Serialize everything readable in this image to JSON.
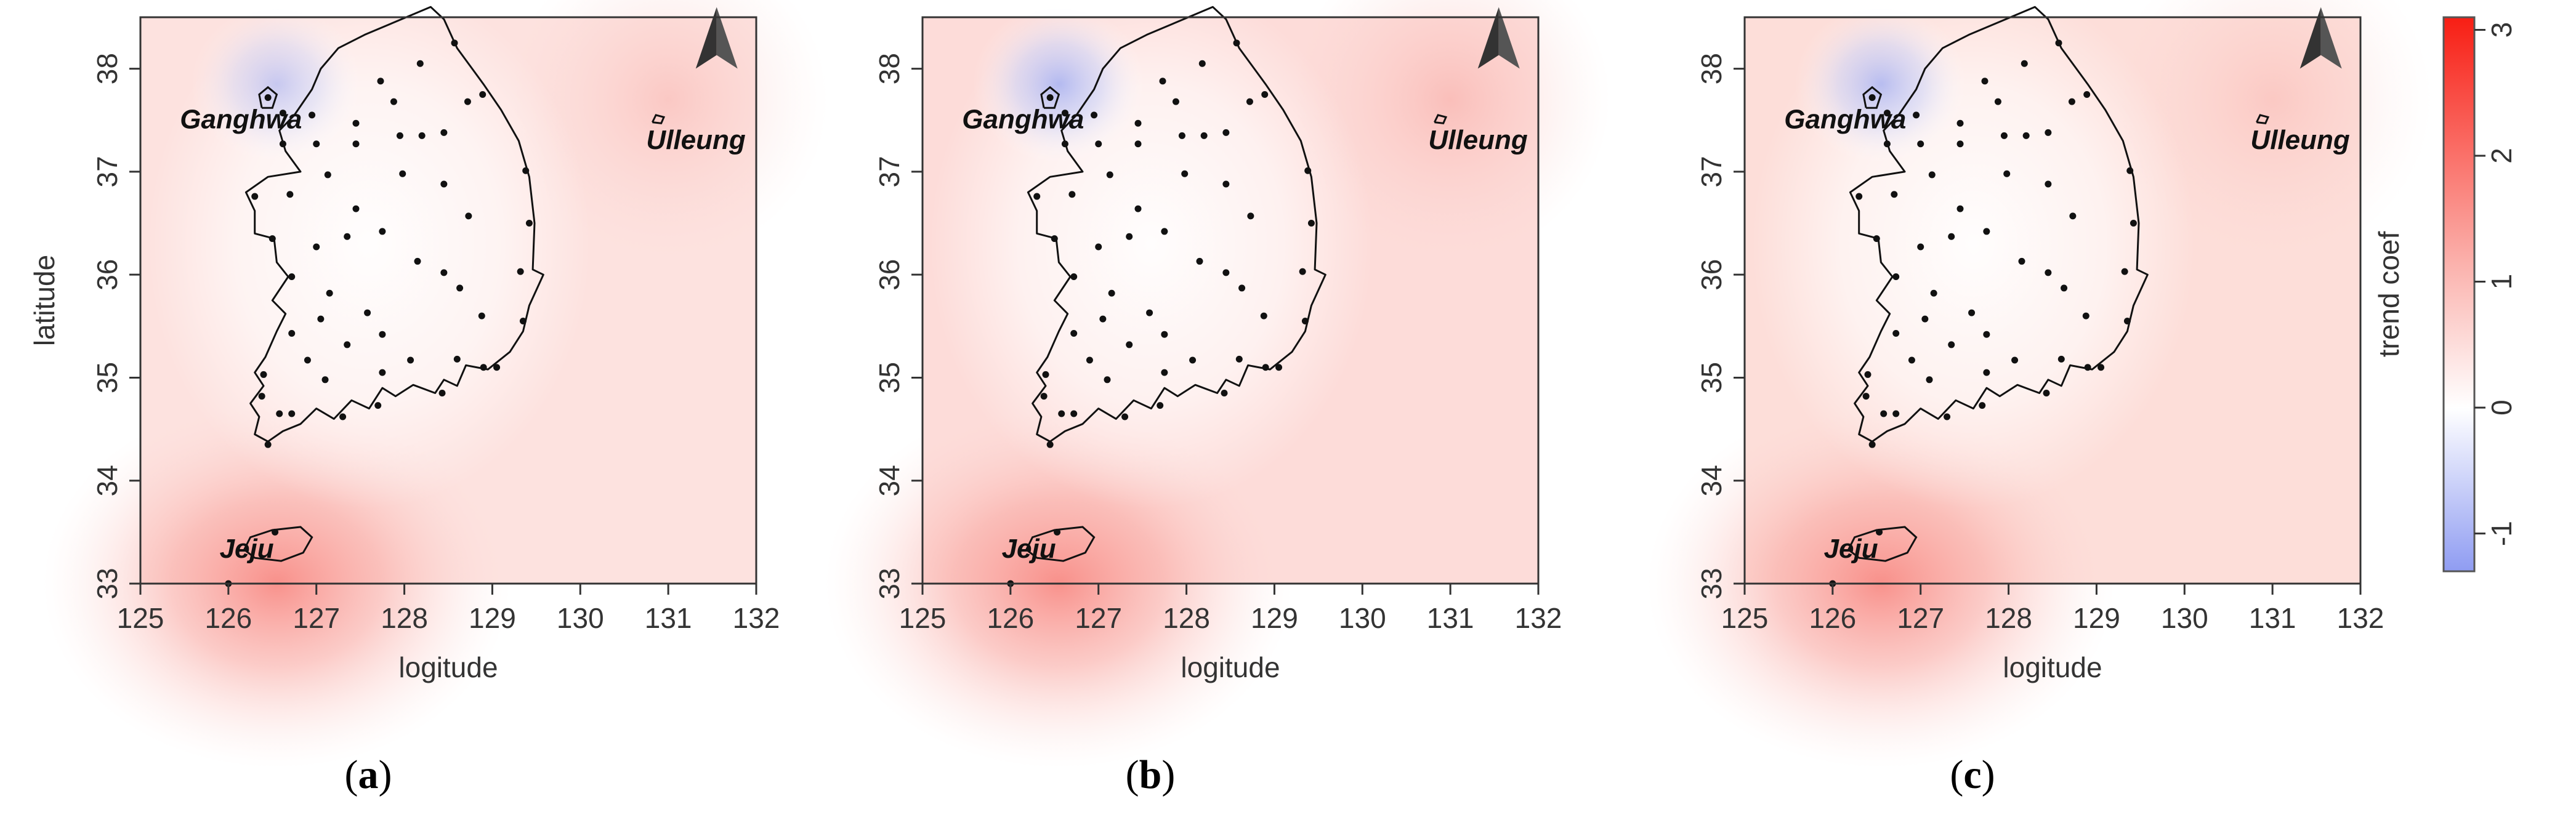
{
  "panels": [
    {
      "label": "a",
      "ylabel": "latitude",
      "xlabel": "logitude",
      "sea_tint": "#fde2df",
      "ulleung_tint": 0.4,
      "ganghwa_blue": 0.55
    },
    {
      "label": "b",
      "ylabel": "",
      "xlabel": "logitude",
      "sea_tint": "#fddcd9",
      "ulleung_tint": 0.5,
      "ganghwa_blue": 0.75
    },
    {
      "label": "c",
      "ylabel": "",
      "xlabel": "logitude",
      "sea_tint": "#fdded9",
      "ulleung_tint": 0.35,
      "ganghwa_blue": 0.7
    }
  ],
  "map": {
    "xticks": [
      "125",
      "126",
      "127",
      "128",
      "129",
      "130",
      "131",
      "132"
    ],
    "yticks": [
      "33",
      "34",
      "35",
      "36",
      "37",
      "38"
    ],
    "x_range": [
      125,
      132
    ],
    "y_range": [
      33,
      38.5
    ],
    "places": [
      {
        "name": "Ganghwa",
        "lon": 126.4,
        "lat": 37.7
      },
      {
        "name": "Ulleung",
        "lon": 130.9,
        "lat": 37.5
      },
      {
        "name": "Jeju",
        "lon": 126.5,
        "lat": 33.4
      }
    ],
    "north_arrow": "north-arrow-icon",
    "stations": [
      [
        126.45,
        37.72
      ],
      [
        126.62,
        37.57
      ],
      [
        126.62,
        37.27
      ],
      [
        126.95,
        37.55
      ],
      [
        127.0,
        37.27
      ],
      [
        127.45,
        37.47
      ],
      [
        127.45,
        37.27
      ],
      [
        127.73,
        37.88
      ],
      [
        127.88,
        37.68
      ],
      [
        128.18,
        38.05
      ],
      [
        128.57,
        38.25
      ],
      [
        128.89,
        37.75
      ],
      [
        128.72,
        37.68
      ],
      [
        128.45,
        37.38
      ],
      [
        128.2,
        37.35
      ],
      [
        127.95,
        37.35
      ],
      [
        129.38,
        37.01
      ],
      [
        127.13,
        36.97
      ],
      [
        126.7,
        36.78
      ],
      [
        126.3,
        36.76
      ],
      [
        127.45,
        36.64
      ],
      [
        127.98,
        36.98
      ],
      [
        128.45,
        36.88
      ],
      [
        128.73,
        36.57
      ],
      [
        129.42,
        36.5
      ],
      [
        126.5,
        36.35
      ],
      [
        127.0,
        36.27
      ],
      [
        127.35,
        36.37
      ],
      [
        127.75,
        36.42
      ],
      [
        128.15,
        36.13
      ],
      [
        128.45,
        36.02
      ],
      [
        129.32,
        36.03
      ],
      [
        128.63,
        35.87
      ],
      [
        128.88,
        35.6
      ],
      [
        129.35,
        35.55
      ],
      [
        128.9,
        35.1
      ],
      [
        129.05,
        35.1
      ],
      [
        128.6,
        35.18
      ],
      [
        128.07,
        35.17
      ],
      [
        127.75,
        35.42
      ],
      [
        127.58,
        35.63
      ],
      [
        127.15,
        35.82
      ],
      [
        126.72,
        35.98
      ],
      [
        126.72,
        35.43
      ],
      [
        127.05,
        35.57
      ],
      [
        126.9,
        35.17
      ],
      [
        127.35,
        35.32
      ],
      [
        126.4,
        35.03
      ],
      [
        127.1,
        34.98
      ],
      [
        127.75,
        35.05
      ],
      [
        126.38,
        34.82
      ],
      [
        126.72,
        34.65
      ],
      [
        127.3,
        34.62
      ],
      [
        127.7,
        34.73
      ],
      [
        128.43,
        34.85
      ],
      [
        126.45,
        34.35
      ],
      [
        126.58,
        34.65
      ],
      [
        126.53,
        33.5
      ],
      [
        126.0,
        33.0
      ]
    ]
  },
  "colorbar": {
    "label": "trend coef",
    "ticks": [
      "3",
      "2",
      "1",
      "0",
      "-1"
    ],
    "range": [
      -1.3,
      3.1
    ],
    "colors": {
      "low": "#8f9cf2",
      "mid": "#ffffff",
      "high": "#f81e14"
    }
  }
}
